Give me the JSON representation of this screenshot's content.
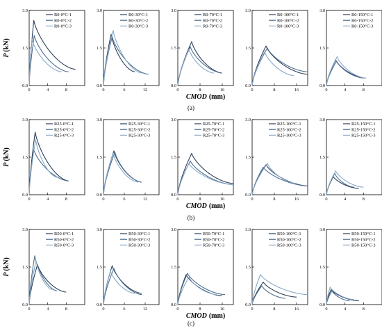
{
  "y_axis_label": "P",
  "y_axis_unit": "(kN)",
  "x_axis_label": "CMOD",
  "x_axis_unit": "(mm)",
  "series_colors": [
    "#2c3e59",
    "#4d6d8e",
    "#86a8c8"
  ],
  "rows": [
    {
      "caption": "(a)",
      "panels": [
        {
          "legend": [
            "R0-0°C-1",
            "R0-0°C-2",
            "R0-0°C-3"
          ],
          "xticks": [
            "0",
            "4",
            "8"
          ],
          "xmax": 12,
          "peaks": [
            {
              "x": 1.0,
              "p": 2.6,
              "end": 10,
              "pe": 0.65
            },
            {
              "x": 1.1,
              "p": 2.0,
              "end": 8.5,
              "pe": 0.55
            },
            {
              "x": 0.6,
              "p": 1.85,
              "end": 7,
              "pe": 0.55
            }
          ]
        },
        {
          "legend": [
            "R0-30°C-1",
            "R0-30°C-2",
            "R0-30°C-3"
          ],
          "xticks": [
            "0",
            "6",
            "12"
          ],
          "xmax": 16,
          "peaks": [
            {
              "x": 2.2,
              "p": 2.05,
              "end": 9,
              "pe": 0.55
            },
            {
              "x": 2.5,
              "p": 1.95,
              "end": 13,
              "pe": 0.45
            },
            {
              "x": 2.8,
              "p": 2.2,
              "end": 11,
              "pe": 0.5
            }
          ]
        },
        {
          "legend": [
            "R0-70°C-1",
            "R0-70°C-2",
            "R0-70°C-3"
          ],
          "xticks": [
            "0",
            "8",
            "16"
          ],
          "xmax": 20,
          "peaks": [
            {
              "x": 5.0,
              "p": 1.75,
              "end": 16,
              "pe": 0.5
            },
            {
              "x": 4.5,
              "p": 1.55,
              "end": 16,
              "pe": 0.5
            },
            {
              "x": 4.0,
              "p": 1.45,
              "end": 13,
              "pe": 0.5
            }
          ]
        },
        {
          "legend": [
            "R0-100°C-1",
            "R0-100°C-2",
            "R0-100°C-3"
          ],
          "xticks": [
            "0",
            "8",
            "16"
          ],
          "xmax": 20,
          "peaks": [
            {
              "x": 5.0,
              "p": 1.58,
              "end": 20,
              "pe": 0.45
            },
            {
              "x": 5.5,
              "p": 1.5,
              "end": 20,
              "pe": 0.55
            },
            {
              "x": 4.5,
              "p": 1.35,
              "end": 15,
              "pe": 0.4
            }
          ]
        },
        {
          "legend": [
            "R0-150°C-1",
            "R0-150°C-2",
            "R0-150°C-3"
          ],
          "xticks": [
            "0",
            "4",
            "8"
          ],
          "xmax": 12,
          "peaks": [
            {
              "x": 2.0,
              "p": 1.02,
              "end": 8.5,
              "pe": 0.3
            },
            {
              "x": 2.2,
              "p": 0.98,
              "end": 8,
              "pe": 0.3
            },
            {
              "x": 2.3,
              "p": 1.15,
              "end": 8.5,
              "pe": 0.3
            }
          ]
        }
      ]
    },
    {
      "caption": "(b)",
      "panels": [
        {
          "legend": [
            "R25-0°C-1",
            "R25-0°C-2",
            "R25-0°C-3"
          ],
          "xticks": [
            "0",
            "4",
            "8"
          ],
          "xmax": 12,
          "peaks": [
            {
              "x": 1.3,
              "p": 2.5,
              "end": 8.5,
              "pe": 0.55
            },
            {
              "x": 1.0,
              "p": 1.8,
              "end": 8.5,
              "pe": 0.55
            },
            {
              "x": 1.4,
              "p": 2.2,
              "end": 6,
              "pe": 0.7
            }
          ]
        },
        {
          "legend": [
            "R25-30°C-1",
            "R25-30°C-2",
            "R25-30°C-3"
          ],
          "xticks": [
            "0",
            "6",
            "12"
          ],
          "xmax": 16,
          "peaks": [
            {
              "x": 3.0,
              "p": 1.75,
              "end": 11,
              "pe": 0.5
            },
            {
              "x": 3.3,
              "p": 1.7,
              "end": 11,
              "pe": 0.5
            },
            {
              "x": 2.8,
              "p": 1.65,
              "end": 10,
              "pe": 0.5
            }
          ]
        },
        {
          "legend": [
            "R25-70°C-1",
            "R25-70°C-2",
            "R25-70°C-3"
          ],
          "xticks": [
            "0",
            "8",
            "16"
          ],
          "xmax": 20,
          "peaks": [
            {
              "x": 5.0,
              "p": 1.65,
              "end": 20,
              "pe": 0.45
            },
            {
              "x": 4.5,
              "p": 1.35,
              "end": 20,
              "pe": 0.4
            },
            {
              "x": 4.0,
              "p": 1.25,
              "end": 20,
              "pe": 0.4
            }
          ]
        },
        {
          "legend": [
            "R25-100°C-1",
            "R25-100°C-2",
            "R25-100°C-3"
          ],
          "xticks": [
            "0",
            "8",
            "16"
          ],
          "xmax": 20,
          "peaks": [
            {
              "x": 5.0,
              "p": 1.2,
              "end": 20,
              "pe": 0.35
            },
            {
              "x": 4.0,
              "p": 1.1,
              "end": 20,
              "pe": 0.35
            },
            {
              "x": 5.5,
              "p": 1.25,
              "end": 16,
              "pe": 0.45
            }
          ]
        },
        {
          "legend": [
            "R25-150°C-1",
            "R25-150°C-2",
            "R25-150°C-3"
          ],
          "xticks": [
            "0",
            "4",
            "8"
          ],
          "xmax": 12,
          "peaks": [
            {
              "x": 1.5,
              "p": 0.72,
              "end": 7,
              "pe": 0.25
            },
            {
              "x": 1.8,
              "p": 0.85,
              "end": 6,
              "pe": 0.3
            },
            {
              "x": 2.0,
              "p": 0.95,
              "end": 8,
              "pe": 0.3
            }
          ]
        }
      ]
    },
    {
      "caption": "(c)",
      "panels": [
        {
          "legend": [
            "R50-0°C-1",
            "R50-0°C-2",
            "R50-0°C-3"
          ],
          "xticks": [
            "0",
            "4",
            "8"
          ],
          "xmax": 12,
          "peaks": [
            {
              "x": 1.8,
              "p": 1.6,
              "end": 8,
              "pe": 0.5
            },
            {
              "x": 1.2,
              "p": 1.95,
              "end": 6,
              "pe": 0.55
            },
            {
              "x": 1.5,
              "p": 1.75,
              "end": 5,
              "pe": 0.6
            }
          ]
        },
        {
          "legend": [
            "R50-30°C-1",
            "R50-30°C-2",
            "R50-30°C-3"
          ],
          "xticks": [
            "0",
            "6",
            "12"
          ],
          "xmax": 16,
          "peaks": [
            {
              "x": 2.5,
              "p": 1.55,
              "end": 11,
              "pe": 0.45
            },
            {
              "x": 3.0,
              "p": 1.45,
              "end": 11,
              "pe": 0.4
            },
            {
              "x": 2.0,
              "p": 1.35,
              "end": 9,
              "pe": 0.45
            }
          ]
        },
        {
          "legend": [
            "R50-70°C-1",
            "R50-70°C-2",
            "R50-70°C-3"
          ],
          "xticks": [
            "0",
            "8",
            "16"
          ],
          "xmax": 20,
          "peaks": [
            {
              "x": 3.0,
              "p": 1.2,
              "end": 16,
              "pe": 0.35
            },
            {
              "x": 3.5,
              "p": 1.25,
              "end": 17,
              "pe": 0.4
            },
            {
              "x": 4.0,
              "p": 1.1,
              "end": 14,
              "pe": 0.4
            }
          ]
        },
        {
          "legend": [
            "R50-100°C-1",
            "R50-100°C-2",
            "R50-100°C-3"
          ],
          "xticks": [
            "0",
            "8",
            "16"
          ],
          "xmax": 20,
          "peaks": [
            {
              "x": 4.0,
              "p": 0.9,
              "end": 16,
              "pe": 0.3
            },
            {
              "x": 3.5,
              "p": 0.75,
              "end": 12,
              "pe": 0.25
            },
            {
              "x": 3.0,
              "p": 1.2,
              "end": 20,
              "pe": 0.4
            }
          ]
        },
        {
          "legend": [
            "R50-150°C-1",
            "R50-150°C-2",
            "R50-150°C-3"
          ],
          "xticks": [
            "0",
            "4",
            "8"
          ],
          "xmax": 12,
          "peaks": [
            {
              "x": 1.0,
              "p": 0.6,
              "end": 7,
              "pe": 0.15
            },
            {
              "x": 1.2,
              "p": 0.55,
              "end": 5,
              "pe": 0.15
            },
            {
              "x": 0.8,
              "p": 0.7,
              "end": 6,
              "pe": 0.2
            }
          ]
        }
      ]
    }
  ],
  "chart_data": {
    "type": "line",
    "yticks": [
      "0.0",
      "1.5",
      "3.0"
    ],
    "ylim": [
      0,
      3.0
    ],
    "grid": false,
    "legend_placement": "top-right"
  }
}
